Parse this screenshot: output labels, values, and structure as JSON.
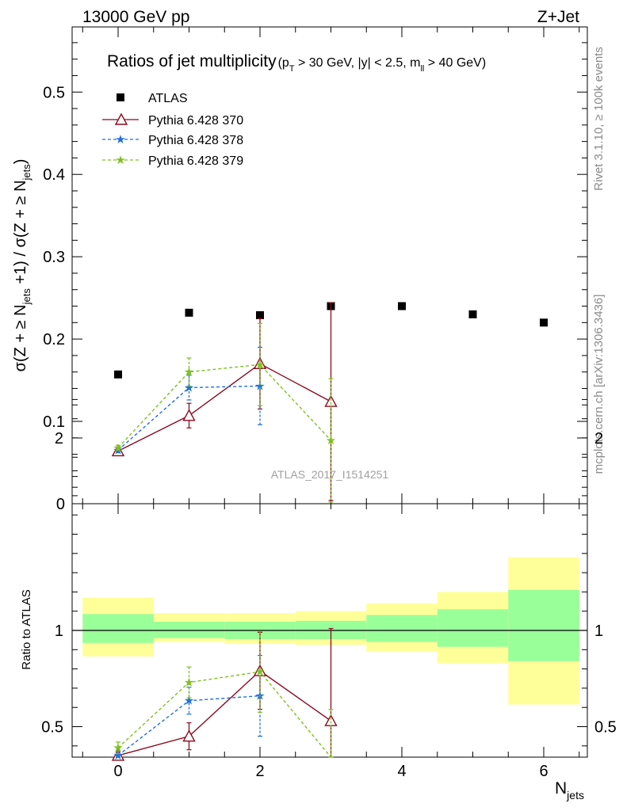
{
  "header": {
    "energy_label": "13000 GeV pp",
    "process_label": "Z+Jet"
  },
  "side_labels": {
    "rivet": "Rivet 3.1.10, ≥ 100k events",
    "mcplots": "mcplots.cern.ch [arXiv:1306.3436]"
  },
  "chart_data": [
    {
      "type": "scatter",
      "title": "Ratios of jet multiplicity",
      "title_cuts": "(p_T > 30 GeV, |y| < 2.5, m_ll > 40 GeV)",
      "ylabel": "σ(Z + ≥ N_jets +1) / σ(Z + ≥ N_jets)",
      "xlabel": "",
      "ylim": [
        0,
        0.58
      ],
      "xlim": [
        -0.6,
        6.6
      ],
      "yticks": [
        0,
        0.1,
        0.2,
        0.3,
        0.4,
        0.5
      ],
      "ytick_labels": [
        "0",
        "0.1",
        "0.2",
        "0.3",
        "0.4",
        "0.5"
      ],
      "watermark": "ATLAS_2017_I1514251",
      "legend_position": "top-left",
      "series": [
        {
          "name": "ATLAS",
          "style": "data",
          "color": "#000000",
          "x": [
            0,
            1,
            2,
            3,
            4,
            5,
            6
          ],
          "y": [
            0.157,
            0.232,
            0.229,
            0.24,
            0.24,
            0.23,
            0.22
          ]
        },
        {
          "name": "Pythia 6.428 370",
          "style": "solid-triangle",
          "color": "#8b0a1f",
          "x": [
            0,
            1,
            2,
            3
          ],
          "y": [
            0.064,
            0.107,
            0.17,
            0.124
          ],
          "err": [
            0.003,
            0.015,
            0.055,
            0.12
          ]
        },
        {
          "name": "Pythia 6.428 378",
          "style": "dashed-star",
          "color": "#1f6fe0",
          "x": [
            0,
            1,
            2
          ],
          "y": [
            0.065,
            0.141,
            0.143
          ],
          "err": [
            0.003,
            0.015,
            0.047
          ]
        },
        {
          "name": "Pythia 6.428 379",
          "style": "dashed-star",
          "color": "#7fc01f",
          "x": [
            0,
            1,
            2,
            3
          ],
          "y": [
            0.068,
            0.16,
            0.169,
            0.077
          ],
          "err": [
            0.003,
            0.017,
            0.05,
            0.075
          ]
        }
      ]
    },
    {
      "type": "scatter",
      "title": "",
      "ylabel": "Ratio to ATLAS",
      "xlabel": "N_jets",
      "ylim": [
        0.33,
        2.3
      ],
      "xlim": [
        -0.6,
        6.6
      ],
      "xticks": [
        0,
        2,
        4,
        6
      ],
      "xtick_labels": [
        "0",
        "2",
        "4",
        "6"
      ],
      "yticks": [
        0.5,
        1,
        2
      ],
      "ytick_labels": [
        "0.5",
        "1",
        "2"
      ],
      "reference_line": 1,
      "bands": [
        {
          "x": 0,
          "inner": [
            0.935,
            1.085
          ],
          "outer": [
            0.865,
            1.17
          ]
        },
        {
          "x": 1,
          "inner": [
            0.96,
            1.045
          ],
          "outer": [
            0.94,
            1.09
          ]
        },
        {
          "x": 2,
          "inner": [
            0.955,
            1.045
          ],
          "outer": [
            0.93,
            1.09
          ]
        },
        {
          "x": 3,
          "inner": [
            0.955,
            1.05
          ],
          "outer": [
            0.925,
            1.1
          ]
        },
        {
          "x": 4,
          "inner": [
            0.94,
            1.08
          ],
          "outer": [
            0.89,
            1.14
          ]
        },
        {
          "x": 5,
          "inner": [
            0.915,
            1.11
          ],
          "outer": [
            0.83,
            1.2
          ]
        },
        {
          "x": 6,
          "inner": [
            0.84,
            1.21
          ],
          "outer": [
            0.615,
            1.38
          ]
        }
      ],
      "band_colors": {
        "inner": "#99ff99",
        "outer": "#ffff99"
      },
      "series": [
        {
          "name": "Pythia 6.428 370",
          "color": "#8b0a1f",
          "x": [
            0,
            1,
            2,
            3
          ],
          "y": [
            0.35,
            0.45,
            0.79,
            0.53
          ],
          "err": [
            0.02,
            0.07,
            0.2,
            0.48
          ]
        },
        {
          "name": "Pythia 6.428 378",
          "color": "#1f6fe0",
          "x": [
            0,
            1,
            2
          ],
          "y": [
            0.35,
            0.635,
            0.66
          ],
          "err": [
            0.02,
            0.07,
            0.21
          ]
        },
        {
          "name": "Pythia 6.428 379",
          "color": "#7fc01f",
          "x": [
            0,
            1,
            2,
            3
          ],
          "y": [
            0.39,
            0.73,
            0.785,
            0.29
          ],
          "err": [
            0.03,
            0.08,
            0.21,
            0.3
          ]
        }
      ]
    }
  ]
}
